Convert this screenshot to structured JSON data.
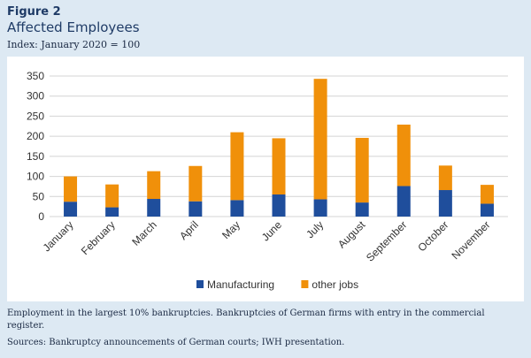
{
  "figure": {
    "label": "Figure 2",
    "title": "Affected Employees",
    "subtitle": "Index: January 2020 = 100",
    "note": "Employment in the largest 10% bankruptcies. Bankruptcies of German firms with entry in the commercial register.",
    "sources": "Sources: Bankruptcy announcements of German courts; IWH presentation."
  },
  "chart_data": {
    "type": "bar",
    "stacked": true,
    "categories": [
      "January",
      "February",
      "March",
      "April",
      "May",
      "June",
      "July",
      "August",
      "September",
      "October",
      "November"
    ],
    "series": [
      {
        "name": "Manufacturing",
        "color": "#1f4e9c",
        "values": [
          37,
          23,
          44,
          38,
          41,
          55,
          43,
          35,
          76,
          66,
          32
        ]
      },
      {
        "name": "other jobs",
        "color": "#f0900a",
        "values": [
          63,
          57,
          69,
          88,
          169,
          140,
          300,
          161,
          153,
          61,
          47
        ]
      }
    ],
    "yticks": [
      0,
      50,
      100,
      150,
      200,
      250,
      300,
      350
    ],
    "ylim": [
      0,
      350
    ],
    "grid": true,
    "legend_position": "bottom"
  }
}
